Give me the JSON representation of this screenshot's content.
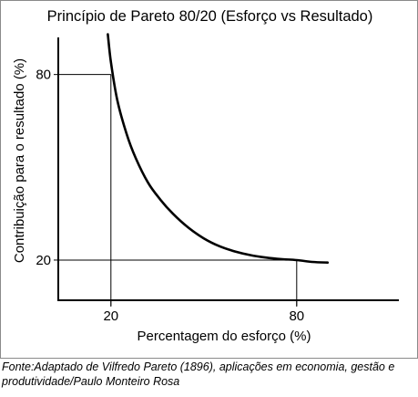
{
  "chart_data": {
    "type": "line",
    "title": "Princípio de Pareto 80/20 (Esforço vs Resultado)",
    "xlabel": "Percentagem do esforço (%)",
    "ylabel": "Contribuição para o resultado (%)",
    "x_ticks": [
      20,
      80
    ],
    "y_ticks": [
      20,
      80
    ],
    "xlim": [
      3,
      113
    ],
    "ylim": [
      7,
      92
    ],
    "grid": false,
    "reference_lines": [
      {
        "x": 20,
        "y": 80
      },
      {
        "x": 80,
        "y": 20
      }
    ],
    "series": [
      {
        "x": [
          19,
          20,
          22,
          25,
          28,
          32,
          36,
          40,
          45,
          50,
          55,
          60,
          65,
          70,
          75,
          80,
          85,
          90
        ],
        "y": [
          93,
          84,
          72,
          61,
          53,
          45,
          39.5,
          35,
          30.5,
          27,
          24.5,
          22.8,
          21.6,
          20.8,
          20.3,
          20,
          19.4,
          19.2
        ]
      }
    ]
  },
  "source_note": "Fonte:Adaptado de Vilfredo Pareto (1896), aplicações em economia, gestão e produtividade/Paulo Monteiro Rosa"
}
